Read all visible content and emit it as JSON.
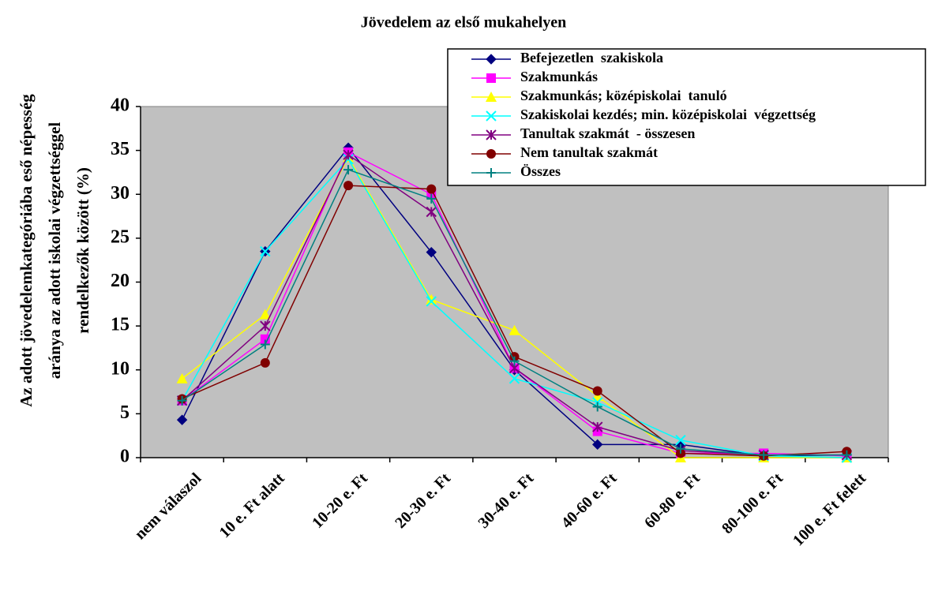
{
  "chart_data": {
    "type": "line",
    "title": "Jövedelem az első mukahelyen",
    "y_label": [
      "Az adott jövedelemkategóriába eső népesség",
      "aránya az adott iskolai végzettséggel",
      "rendelkezők között (%)"
    ],
    "categories": [
      "nem válaszol",
      "10 e. Ft alatt",
      "10-20 e. Ft",
      "20-30 e. Ft",
      "30-40 e. Ft",
      "40-60 e. Ft",
      "60-80 e. Ft",
      "80-100 e. Ft",
      "100 e. Ft felett"
    ],
    "ylim": [
      0,
      40
    ],
    "yticks": [
      0,
      5,
      10,
      15,
      20,
      25,
      30,
      35,
      40
    ],
    "grid": false,
    "background": "#c0c0c0",
    "legend": "top-right",
    "series": [
      {
        "name": "Befejezetlen  szakiskola",
        "color": "#000080",
        "marker": "diamond",
        "values": [
          4.3,
          23.5,
          35.3,
          23.4,
          10,
          1.5,
          1.5,
          0.2,
          0.3
        ]
      },
      {
        "name": "Szakmunkás",
        "color": "#ff00ff",
        "marker": "square",
        "values": [
          6.5,
          13.5,
          34.8,
          30,
          10.2,
          3,
          0.5,
          0.5,
          0.2
        ]
      },
      {
        "name": "Szakmunkás; középiskolai  tanuló",
        "color": "#ffff00",
        "marker": "triangle",
        "values": [
          9,
          16.3,
          34.2,
          18,
          14.5,
          7,
          0,
          0,
          0
        ]
      },
      {
        "name": "Szakiskolai kezdés; min. középiskolai  végzettség",
        "color": "#00ffff",
        "marker": "x",
        "values": [
          6.5,
          23.5,
          34,
          17.8,
          9,
          6.3,
          2,
          0.2,
          0
        ]
      },
      {
        "name": "Tanultak szakmát  - összesen",
        "color": "#800080",
        "marker": "star",
        "values": [
          6.5,
          15,
          34.5,
          28,
          10.2,
          3.5,
          0.8,
          0.3,
          0.3
        ]
      },
      {
        "name": "Nem tanultak szakmát",
        "color": "#800000",
        "marker": "circle",
        "values": [
          6.7,
          10.8,
          31,
          30.6,
          11.5,
          7.6,
          0.5,
          0.2,
          0.7
        ]
      },
      {
        "name": "Összes",
        "color": "#008080",
        "marker": "plus",
        "values": [
          6.5,
          12.9,
          32.8,
          29.5,
          11,
          5.8,
          1,
          0.3,
          0.3
        ]
      }
    ]
  }
}
